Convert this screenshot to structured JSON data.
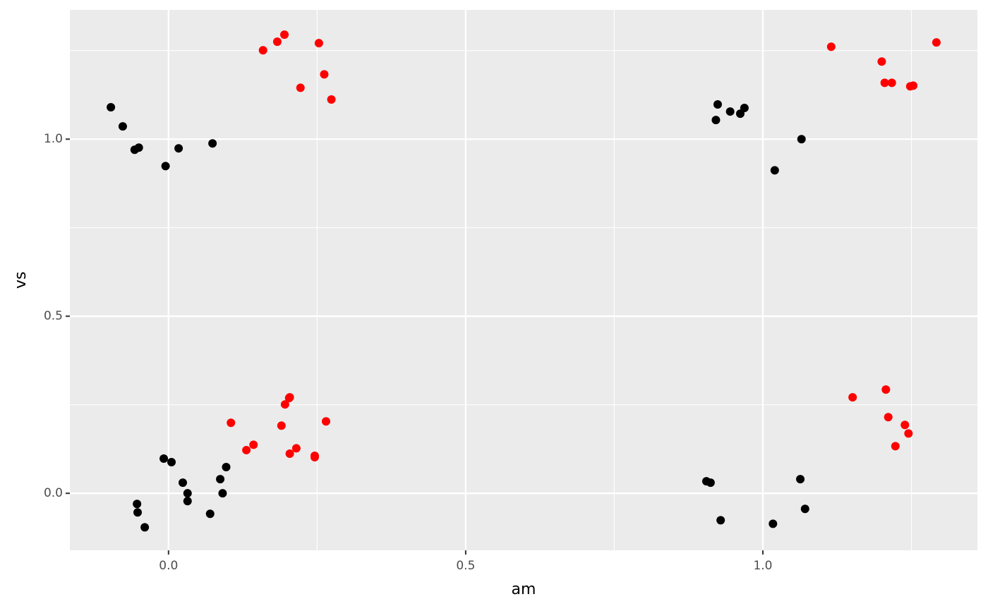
{
  "chart_data": {
    "type": "scatter",
    "x_label": "am",
    "y_label": "vs",
    "xlim": [
      -0.166,
      1.361
    ],
    "ylim": [
      -0.161,
      1.365
    ],
    "xticks": [
      {
        "value": 0,
        "label": "0.0"
      },
      0.5,
      {
        "value": 1,
        "label": "1.0"
      }
    ],
    "yticks": [
      {
        "value": 0,
        "label": "0.0"
      },
      0.5,
      {
        "value": 1,
        "label": "1.0"
      }
    ],
    "minor_xticks": [
      0.25,
      0.75,
      1.25
    ],
    "minor_yticks": [
      0.25,
      0.75,
      1.25
    ],
    "grid": true,
    "series": [
      {
        "color": "#000000",
        "x": [
          -0.097,
          -0.077,
          -0.057,
          -0.05,
          -0.005,
          0.017,
          0.074,
          -0.008,
          0.005,
          0.024,
          0.032,
          0.032,
          0.087,
          0.091,
          0.097,
          -0.053,
          -0.052,
          -0.04,
          0.07,
          0.924,
          0.921,
          0.945,
          0.962,
          0.969,
          1.065,
          1.02,
          0.905,
          0.912,
          0.929,
          1.063,
          1.071,
          1.017
        ],
        "values": [
          1.09,
          1.036,
          0.97,
          0.976,
          0.924,
          0.974,
          0.988,
          0.098,
          0.088,
          0.03,
          0,
          -0.022,
          0.04,
          0,
          0.074,
          -0.03,
          -0.054,
          -0.096,
          -0.058,
          1.098,
          1.054,
          1.078,
          1.072,
          1.088,
          1.0,
          0.912,
          0.034,
          0.03,
          -0.076,
          0.04,
          -0.044,
          -0.086
        ]
      },
      {
        "color": "#ff0000",
        "x": [
          0.159,
          0.183,
          0.195,
          0.253,
          0.262,
          0.222,
          0.274,
          0.105,
          0.131,
          0.143,
          0.19,
          0.196,
          0.203,
          0.204,
          0.204,
          0.215,
          0.246,
          0.246,
          0.265,
          1.115,
          1.2,
          1.205,
          1.217,
          1.248,
          1.253,
          1.292,
          1.151,
          1.207,
          1.211,
          1.223,
          1.239,
          1.245
        ],
        "values": [
          1.251,
          1.275,
          1.295,
          1.271,
          1.183,
          1.145,
          1.112,
          0.199,
          0.122,
          0.137,
          0.191,
          0.251,
          0.269,
          0.271,
          0.112,
          0.127,
          0.106,
          0.102,
          0.203,
          1.261,
          1.219,
          1.159,
          1.159,
          1.149,
          1.151,
          1.273,
          0.271,
          0.293,
          0.215,
          0.133,
          0.193,
          0.169
        ]
      }
    ]
  }
}
